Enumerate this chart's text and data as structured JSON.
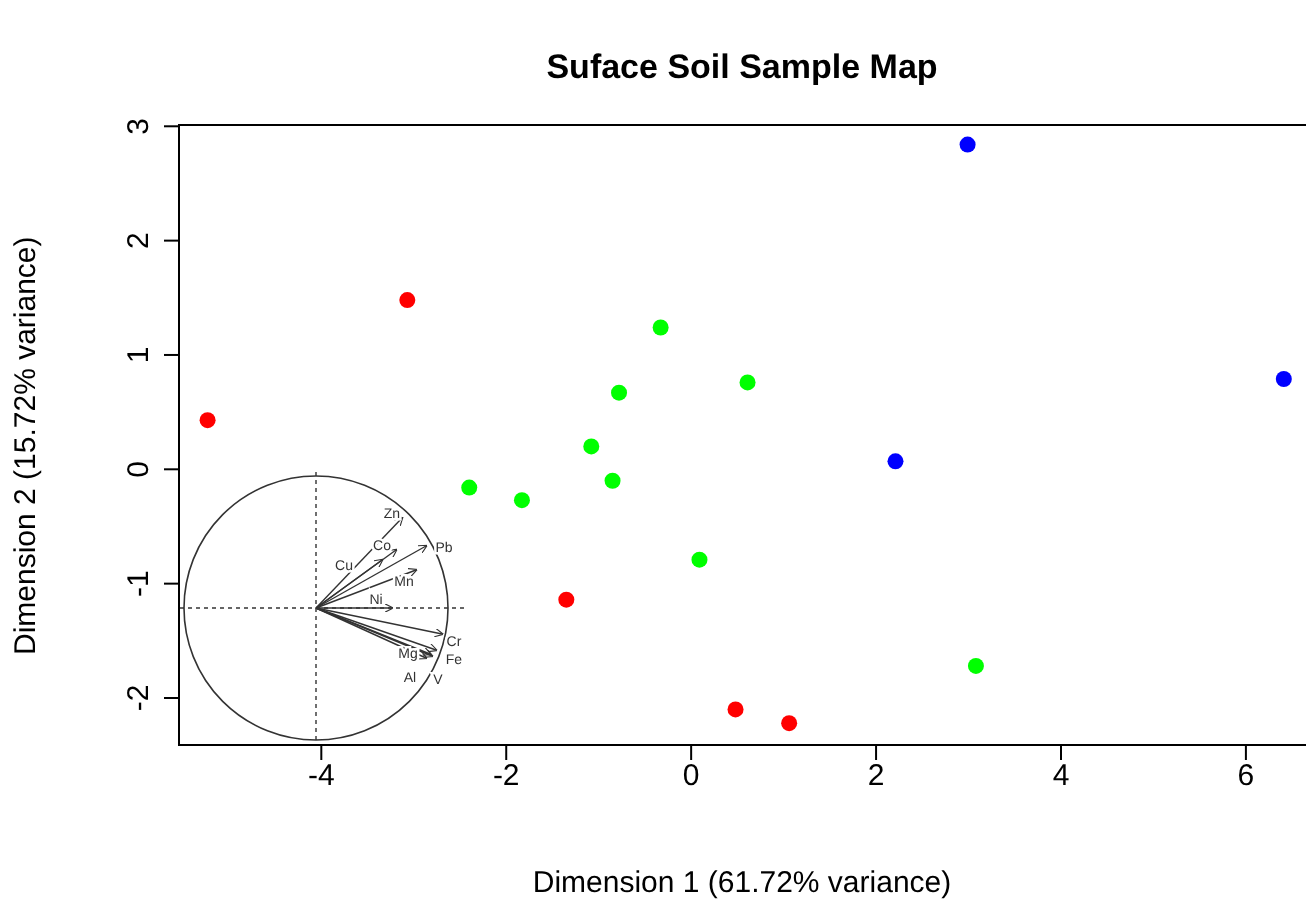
{
  "chart_data": {
    "type": "scatter",
    "title": "Suface Soil Sample Map",
    "xlabel": "Dimension 1 (61.72% variance)",
    "ylabel": "Dimension 2 (15.72% variance)",
    "series": [
      {
        "color": "#ff0000",
        "x": [
          -5.23,
          -3.07,
          -1.35,
          0.48,
          1.06
        ],
        "values": [
          0.43,
          1.48,
          -1.14,
          -2.1,
          -2.22
        ]
      },
      {
        "color": "#00ff00",
        "x": [
          -2.4,
          -1.83,
          -1.08,
          -0.85,
          -0.78,
          -0.33,
          0.61,
          0.09,
          3.08
        ],
        "values": [
          -0.16,
          -0.27,
          0.2,
          -0.1,
          0.67,
          1.24,
          0.76,
          -0.79,
          -1.72
        ]
      },
      {
        "color": "#0000ff",
        "x": [
          2.99,
          2.21,
          6.41
        ],
        "values": [
          2.84,
          0.07,
          0.79
        ]
      }
    ],
    "xlim": [
      -5.55,
      6.65
    ],
    "ylim": [
      -2.42,
      3.02
    ],
    "xticks": [
      -4,
      -2,
      0,
      2,
      4,
      6
    ],
    "yticks": [
      -2,
      -1,
      0,
      1,
      2,
      3
    ],
    "marker": "circle",
    "annotations": [
      "Zn",
      "Co",
      "Cu",
      "Pb",
      "Mn",
      "Ni",
      "Cr",
      "Fe",
      "Mg",
      "Al",
      "V"
    ]
  }
}
